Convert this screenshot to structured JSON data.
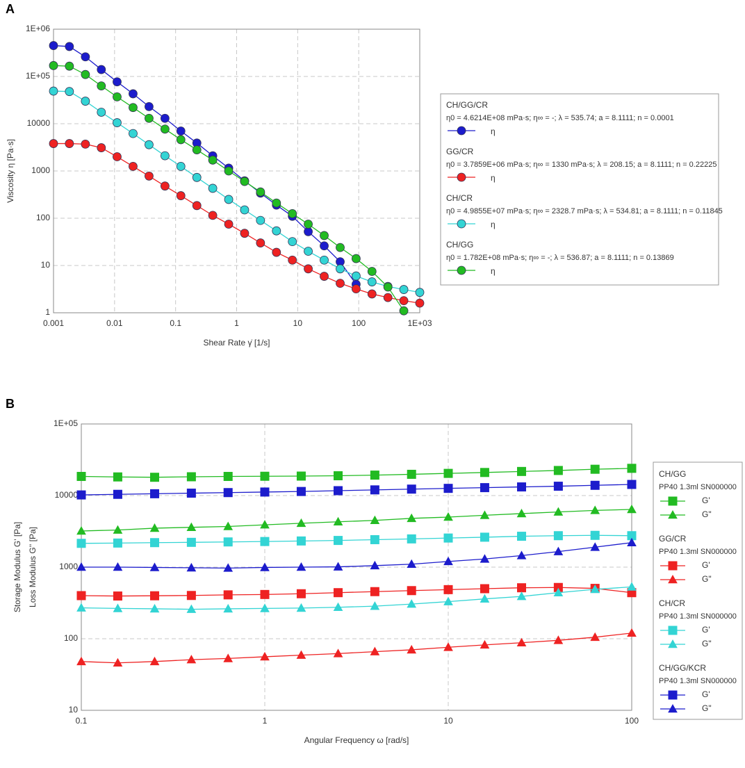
{
  "chart_data": [
    {
      "type": "line",
      "panel": "A",
      "xscale": "log",
      "yscale": "log",
      "grid": true,
      "xlabel": "Shear Rate γ̇  [1/s]",
      "ylabel": "Viscosity η  [Pa·s]",
      "xlim": [
        0.001,
        1000
      ],
      "ylim": [
        1,
        1000000
      ],
      "xticks": [
        0.001,
        0.01,
        0.1,
        1,
        10,
        100,
        {
          "value": 1000,
          "label": "1E+03"
        }
      ],
      "yticks": [
        1,
        10,
        100,
        1000,
        10000,
        {
          "value": 100000,
          "label": "1E+05"
        },
        {
          "value": 1000000,
          "label": "1E+06"
        }
      ],
      "x": [
        0.001,
        0.00182,
        0.00333,
        0.00607,
        0.011,
        0.0201,
        0.0367,
        0.067,
        0.122,
        0.223,
        0.406,
        0.741,
        1.35,
        2.46,
        4.49,
        8.19,
        14.9,
        27.2,
        49.7,
        90.6,
        165,
        301,
        548,
        1000
      ],
      "series": [
        {
          "name": "CH/GG/CR",
          "params": "η0 = 4.6214E+08 mPa·s; η∞ = -; λ = 535.74; a = 8.1111; n = 0.0001",
          "label": "η",
          "color": "#1c1ccc",
          "marker": "circle",
          "values": [
            450000,
            430000,
            260000,
            140000,
            77000,
            43000,
            23000,
            13000,
            7000,
            3900,
            2100,
            1150,
            620,
            340,
            190,
            110,
            52,
            26,
            12,
            4,
            null,
            null,
            null,
            null
          ]
        },
        {
          "name": "GG/CR",
          "params": "η0 = 3.7859E+06 mPa·s; η∞ = 1330 mPa·s; λ = 208.15; a = 8.1111; n = 0.22225",
          "label": "η",
          "color": "#ee2222",
          "marker": "circle",
          "values": [
            3800,
            3800,
            3700,
            3100,
            2000,
            1250,
            780,
            480,
            300,
            185,
            115,
            75,
            48,
            30,
            19,
            13,
            8.5,
            5.9,
            4.2,
            3.2,
            2.5,
            2.1,
            1.8,
            1.6
          ]
        },
        {
          "name": "CH/CR",
          "params": "η0 = 4.9855E+07 mPa·s; η∞ = 2328.7 mPa·s; λ = 534.81; a = 8.1111; n = 0.11845",
          "label": "η",
          "color": "#33d4d4",
          "marker": "circle",
          "values": [
            49000,
            48000,
            30000,
            17500,
            10500,
            6200,
            3600,
            2100,
            1250,
            730,
            430,
            250,
            150,
            90,
            54,
            32,
            20,
            13,
            8.5,
            6,
            4.5,
            3.6,
            3.1,
            2.7
          ]
        },
        {
          "name": "CH/GG",
          "params": "η0 = 1.782E+08 mPa·s; η∞ = -; λ = 536.87; a = 8.1111; n = 0.13869",
          "label": "η",
          "color": "#22bb22",
          "marker": "circle",
          "values": [
            170000,
            165000,
            110000,
            63000,
            37000,
            22000,
            13000,
            7700,
            4600,
            2800,
            1700,
            1000,
            600,
            360,
            210,
            125,
            75,
            43,
            24,
            14,
            7.5,
            3.5,
            1.1,
            null
          ]
        }
      ]
    },
    {
      "type": "line",
      "panel": "B",
      "xscale": "log",
      "yscale": "log",
      "grid": true,
      "xlabel": "Angular Frequency ω  [rad/s]",
      "ylabel": [
        "Storage Modulus G'  [Pa]",
        "Loss Modulus G''  [Pa]"
      ],
      "xlim": [
        0.1,
        100
      ],
      "ylim": [
        10,
        100000
      ],
      "xticks": [
        0.1,
        1,
        10,
        100
      ],
      "yticks": [
        10,
        100,
        1000,
        10000,
        {
          "value": 100000,
          "label": "1E+05"
        }
      ],
      "x": [
        0.1,
        0.158,
        0.251,
        0.398,
        0.631,
        1,
        1.58,
        2.51,
        3.98,
        6.31,
        10,
        15.8,
        25.1,
        39.8,
        63.1,
        100
      ],
      "groups": [
        {
          "name": "CH/GG",
          "subtitle": "PP40 1.3ml SN000000",
          "color": "#22bb22",
          "series": [
            {
              "name": "G'",
              "marker": "square",
              "values": [
                18500,
                18200,
                18000,
                18300,
                18500,
                18600,
                18700,
                18900,
                19300,
                19800,
                20400,
                21000,
                21700,
                22400,
                23300,
                24000
              ]
            },
            {
              "name": "G\"",
              "marker": "triangle",
              "values": [
                3200,
                3300,
                3500,
                3600,
                3700,
                3900,
                4100,
                4300,
                4500,
                4800,
                5000,
                5300,
                5600,
                5900,
                6200,
                6400
              ]
            }
          ]
        },
        {
          "name": "GG/CR",
          "subtitle": "PP40 1.3ml SN000000",
          "color": "#ee2222",
          "series": [
            {
              "name": "G'",
              "marker": "square",
              "values": [
                400,
                395,
                398,
                402,
                410,
                415,
                425,
                440,
                455,
                470,
                485,
                500,
                515,
                520,
                505,
                440
              ]
            },
            {
              "name": "G\"",
              "marker": "triangle",
              "values": [
                48,
                46,
                48,
                51,
                53,
                56,
                59,
                62,
                66,
                70,
                76,
                82,
                88,
                95,
                105,
                120
              ]
            }
          ]
        },
        {
          "name": "CH/CR",
          "subtitle": "PP40 1.3ml SN000000",
          "color": "#33d4d4",
          "series": [
            {
              "name": "G'",
              "marker": "square",
              "values": [
                2150,
                2170,
                2200,
                2220,
                2250,
                2280,
                2320,
                2360,
                2420,
                2480,
                2550,
                2620,
                2700,
                2750,
                2780,
                2750
              ]
            },
            {
              "name": "G\"",
              "marker": "triangle",
              "values": [
                270,
                265,
                262,
                258,
                262,
                265,
                268,
                275,
                285,
                305,
                330,
                360,
                390,
                440,
                490,
                530
              ]
            }
          ]
        },
        {
          "name": "CH/GG/KCR",
          "subtitle": "PP40 1.3ml SN000000",
          "color": "#1c1ccc",
          "series": [
            {
              "name": "G'",
              "marker": "square",
              "values": [
                10200,
                10400,
                10600,
                10800,
                11000,
                11200,
                11400,
                11700,
                12000,
                12300,
                12600,
                12900,
                13200,
                13500,
                13900,
                14300
              ]
            },
            {
              "name": "G\"",
              "marker": "triangle",
              "values": [
                1000,
                1000,
                990,
                980,
                970,
                990,
                1000,
                1010,
                1050,
                1100,
                1200,
                1300,
                1450,
                1650,
                1900,
                2200
              ]
            }
          ]
        }
      ]
    }
  ]
}
